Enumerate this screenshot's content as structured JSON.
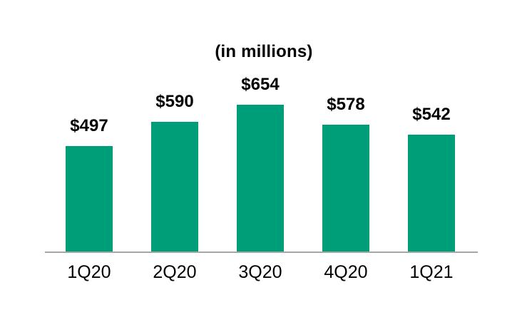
{
  "chart_data": {
    "type": "bar",
    "title": "(in millions)",
    "categories": [
      "1Q20",
      "2Q20",
      "3Q20",
      "4Q20",
      "1Q21"
    ],
    "values": [
      497,
      590,
      654,
      578,
      542
    ],
    "value_labels": [
      "$497",
      "$590",
      "$654",
      "$578",
      "$542"
    ],
    "ylim": [
      100,
      700
    ],
    "grid": false,
    "legend": "none",
    "colors": {
      "bar": "#009E78",
      "axis_line": "#A6A6A6",
      "text": "#000000",
      "background": "#FFFFFF"
    }
  }
}
